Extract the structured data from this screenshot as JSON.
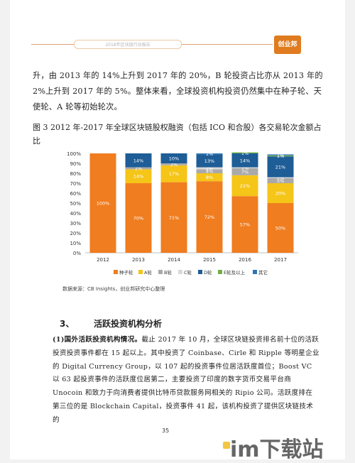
{
  "header": {
    "text": "2018年区块链行业报告",
    "logo": "创业邦"
  },
  "intro_paragraph": "升，由 2013 年的 14%上升到 2017 年的 20%，B 轮投资占比亦从 2013 年的 2%上升到 2017 年的 5%。整体来看，全球投资机构投资仍然集中在种子轮、天使轮、A 轮等初始轮次。",
  "figure_caption": "图 3 2012 年-2017 年全球区块链股权融资（包括 ICO 和合股）各交易轮次金额占比",
  "chart_data": {
    "type": "bar",
    "stacked": true,
    "categories": [
      "2012",
      "2013",
      "2014",
      "2015",
      "2016",
      "2017"
    ],
    "yticks": [
      "0%",
      "10%",
      "20%",
      "30%",
      "40%",
      "50%",
      "60%",
      "70%",
      "80%",
      "90%",
      "100%"
    ],
    "ylim": [
      0,
      100
    ],
    "series": [
      {
        "name": "种子轮",
        "color": "#f07d20",
        "values": [
          100,
          70,
          71,
          72,
          57,
          50
        ],
        "labels": [
          "100%",
          "70%",
          "71%",
          "72%",
          "57%",
          "50%"
        ]
      },
      {
        "name": "A轮",
        "color": "#f5c518",
        "values": [
          0,
          14,
          17,
          8,
          21,
          20
        ],
        "labels": [
          "",
          "14%",
          "17%",
          "8%",
          "21%",
          "20%"
        ]
      },
      {
        "name": "B轮",
        "color": "#a9a9a9",
        "values": [
          0,
          2,
          2,
          4,
          7,
          5
        ],
        "labels": [
          "",
          "2%",
          "2%",
          "4%",
          "7%",
          "5%"
        ]
      },
      {
        "name": "C轮",
        "color": "#d9d9d9",
        "values": [
          0,
          0,
          0,
          2,
          1,
          1
        ],
        "labels": [
          "",
          "",
          "",
          "2%",
          "1%",
          "1%"
        ]
      },
      {
        "name": "D轮",
        "color": "#1e5d96",
        "values": [
          0,
          14,
          10,
          13,
          14,
          21
        ],
        "labels": [
          "",
          "14%",
          "10%",
          "13%",
          "14%",
          "21%"
        ]
      },
      {
        "name": "E轮及以上",
        "color": "#70ad47",
        "values": [
          0,
          0,
          0,
          0,
          1,
          1
        ],
        "labels": [
          "",
          "",
          "",
          "",
          "1%",
          "1%"
        ]
      },
      {
        "name": "其它",
        "color": "#2e75b6",
        "values": [
          0,
          0,
          0,
          1,
          0,
          1
        ],
        "labels": [
          "",
          "",
          "",
          "1%",
          "",
          "1%"
        ]
      }
    ],
    "legend_position": "bottom"
  },
  "source": "数据来源：CB Insights，创业邦研究中心整理",
  "section": {
    "number": "3、",
    "title": "活跃投资机构分析"
  },
  "section_paragraph": {
    "lead": "(1)国外活跃投资机构情况。",
    "body": "截止 2017 年 10 月，全球区块链投资排名前十位的活跃投资投资事件都在 15 起以上。其中投资了 Coinbase、Cirle 和 Ripple 等明星企业的 Digital Currency Group，以 107 起的投资事件位居活跃度首位；Boost VC 以 63 起投资事件的活跃度位居第二，主要投资了印度的数字货币交易平台商 Unocoin 和致力于向消费者提供比特币贷款服务网相关的 Ripio 公司。活跃度排在第三位的是 Blockchain Capital，投资事件 41 起，该机构投资了提供区块链技术的"
  },
  "page_number": "35",
  "watermark": "im下载站"
}
